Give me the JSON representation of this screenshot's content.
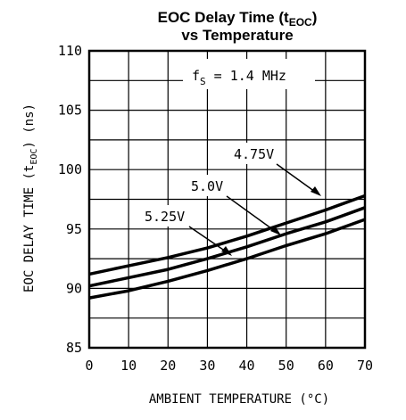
{
  "chart_data": {
    "type": "line",
    "title_main": "EOC Delay Time (t",
    "title_sub": "EOC",
    "title_close": ")",
    "title_line2": "vs Temperature",
    "xlabel": "AMBIENT TEMPERATURE (°C)",
    "ylabel_pre": "EOC DELAY TIME (t",
    "ylabel_sub": "EOC",
    "ylabel_post": ") (ns)",
    "xlim": [
      0,
      70
    ],
    "ylim": [
      85,
      110
    ],
    "x_ticks": [
      "0",
      "10",
      "20",
      "30",
      "40",
      "50",
      "60",
      "70"
    ],
    "y_ticks": [
      "85",
      "90",
      "95",
      "100",
      "105",
      "110"
    ],
    "grid": true,
    "condition_main": "f",
    "condition_sub": "S",
    "condition_rest": " = 1.4 MHz",
    "series": [
      {
        "name": "4.75V",
        "x": [
          0,
          10,
          20,
          30,
          40,
          50,
          60,
          70
        ],
        "y": [
          91.2,
          91.9,
          92.6,
          93.4,
          94.4,
          95.5,
          96.6,
          97.8
        ]
      },
      {
        "name": "5.0V",
        "x": [
          0,
          10,
          20,
          30,
          40,
          50,
          60,
          70
        ],
        "y": [
          90.2,
          90.9,
          91.6,
          92.5,
          93.5,
          94.6,
          95.6,
          96.8
        ]
      },
      {
        "name": "5.25V",
        "x": [
          0,
          10,
          20,
          30,
          40,
          50,
          60,
          70
        ],
        "y": [
          89.2,
          89.8,
          90.6,
          91.5,
          92.5,
          93.6,
          94.6,
          95.8
        ]
      }
    ]
  }
}
